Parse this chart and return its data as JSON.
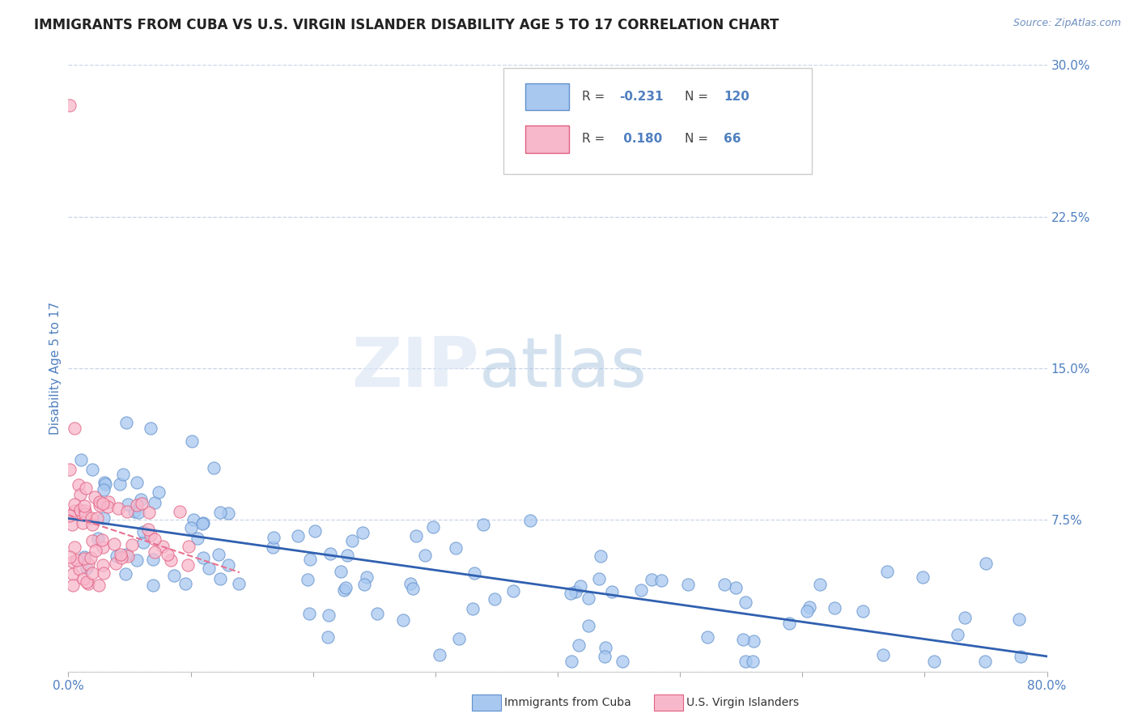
{
  "title": "IMMIGRANTS FROM CUBA VS U.S. VIRGIN ISLANDER DISABILITY AGE 5 TO 17 CORRELATION CHART",
  "source": "Source: ZipAtlas.com",
  "ylabel": "Disability Age 5 to 17",
  "x_min": 0.0,
  "x_max": 0.8,
  "y_min": 0.0,
  "y_max": 0.3,
  "y_ticks_right": [
    0.0,
    0.075,
    0.15,
    0.225,
    0.3
  ],
  "y_tick_labels_right": [
    "",
    "7.5%",
    "15.0%",
    "22.5%",
    "30.0%"
  ],
  "blue_R": -0.231,
  "blue_N": 120,
  "pink_R": 0.18,
  "pink_N": 66,
  "blue_color": "#a8c8f0",
  "blue_edge": "#6090cc",
  "pink_color": "#f8b8cc",
  "pink_edge": "#e06080",
  "blue_line_color": "#3060b0",
  "pink_line_color": "#e87090",
  "background_color": "#ffffff",
  "grid_color": "#c8d4e8",
  "title_color": "#222222",
  "label_color": "#5080c0",
  "watermark_zip": "ZIP",
  "watermark_atlas": "atlas",
  "legend_label_blue": "Immigrants from Cuba",
  "legend_label_pink": "U.S. Virgin Islanders"
}
